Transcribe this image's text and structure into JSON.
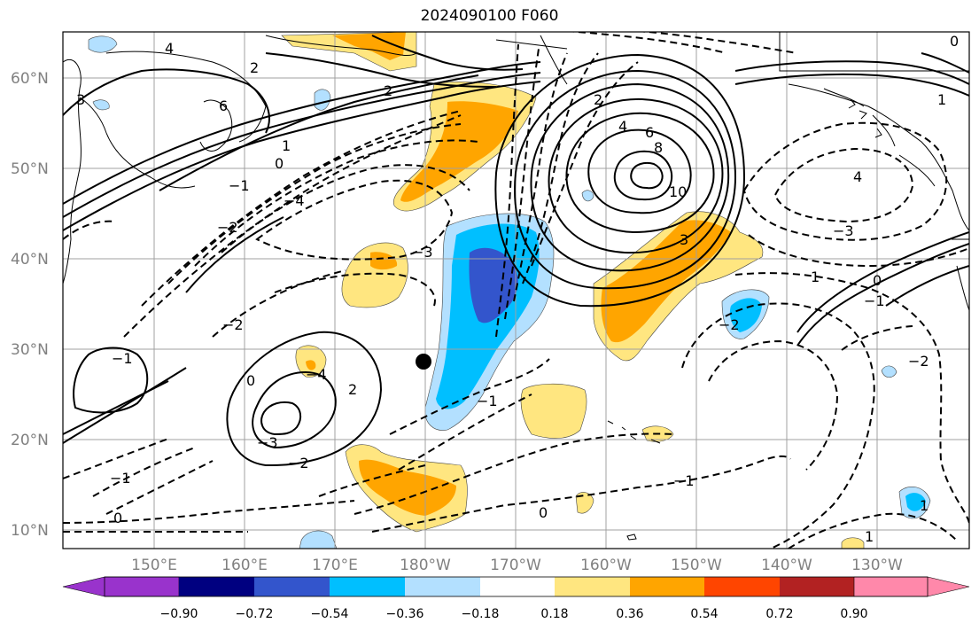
{
  "title": "2024090100 F060",
  "lat_labels": [
    "60°N",
    "50°N",
    "40°N",
    "30°N",
    "20°N",
    "10°N"
  ],
  "lon_labels": [
    "150°E",
    "160°E",
    "170°E",
    "180°W",
    "170°W",
    "160°W",
    "150°W",
    "140°W",
    "130°W"
  ],
  "colorbar": {
    "colors": [
      "#9933cc",
      "#000080",
      "#3355cc",
      "#00bfff",
      "#b3e0ff",
      "#ffffff",
      "#ffe680",
      "#ffa500",
      "#ff4500",
      "#b22222",
      "#ff88aa"
    ],
    "tick_labels": [
      "−0.90",
      "−0.72",
      "−0.54",
      "−0.36",
      "−0.18",
      "0.18",
      "0.36",
      "0.54",
      "0.72",
      "0.90"
    ]
  },
  "contour_labels": [
    "4",
    "6",
    "3",
    "2",
    "1",
    "0",
    "−1",
    "−2",
    "−3",
    "−4",
    "6",
    "8",
    "10",
    "4",
    "3",
    "2",
    "1",
    "0",
    "−1",
    "−2",
    "−3",
    "4",
    "1",
    "−1",
    "−2",
    "0",
    "−1",
    "−2",
    "−3",
    "−4",
    "0",
    "−1",
    "2",
    "−1",
    "0",
    "−2",
    "1",
    "2",
    "1",
    "0"
  ],
  "marker": "storm-center-dot"
}
